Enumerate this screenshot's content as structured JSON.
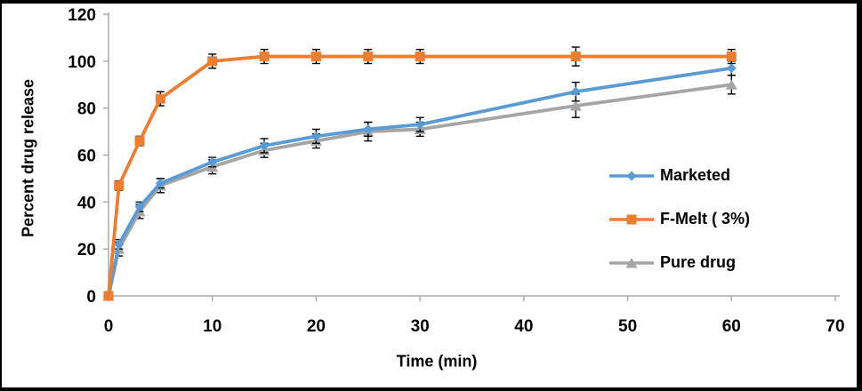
{
  "figure": {
    "border_color": "#000000",
    "background": "#ffffff"
  },
  "chart_data": {
    "type": "line",
    "title": "",
    "xlabel": "Time (min)",
    "ylabel": "Percent drug release",
    "x": [
      0,
      1,
      3,
      5,
      10,
      15,
      20,
      25,
      30,
      45,
      60
    ],
    "xlim": [
      0,
      70
    ],
    "ylim": [
      0,
      120
    ],
    "x_ticks": [
      0,
      10,
      20,
      30,
      40,
      50,
      60,
      70
    ],
    "y_ticks": [
      0,
      20,
      40,
      60,
      80,
      100,
      120
    ],
    "grid": false,
    "legend_position": "right-middle",
    "axis_color": "#ABABAB",
    "tick_label_color": "#000000",
    "error_bar_color": "#000000",
    "series": [
      {
        "name": "Marketed",
        "color": "#5B9BD5",
        "marker": "diamond",
        "values": [
          0,
          22,
          38,
          48,
          57,
          64,
          68,
          71,
          73,
          87,
          97
        ],
        "errors": [
          0,
          2,
          2,
          2,
          2,
          3,
          3,
          3,
          3,
          4,
          3
        ]
      },
      {
        "name": "F-Melt ( 3%)",
        "color": "#ED7D31",
        "marker": "square",
        "values": [
          0,
          47,
          66,
          84,
          100,
          102,
          102,
          102,
          102,
          102,
          102
        ],
        "errors": [
          0,
          2,
          2,
          3,
          3,
          3,
          3,
          3,
          3,
          4,
          3
        ]
      },
      {
        "name": "Pure drug",
        "color": "#A5A5A5",
        "marker": "triangle",
        "values": [
          0,
          20,
          36,
          47,
          55,
          62,
          66,
          70,
          71,
          81,
          90
        ],
        "errors": [
          0,
          3,
          3,
          3,
          3,
          3,
          3,
          4,
          3,
          5,
          4
        ]
      }
    ]
  }
}
